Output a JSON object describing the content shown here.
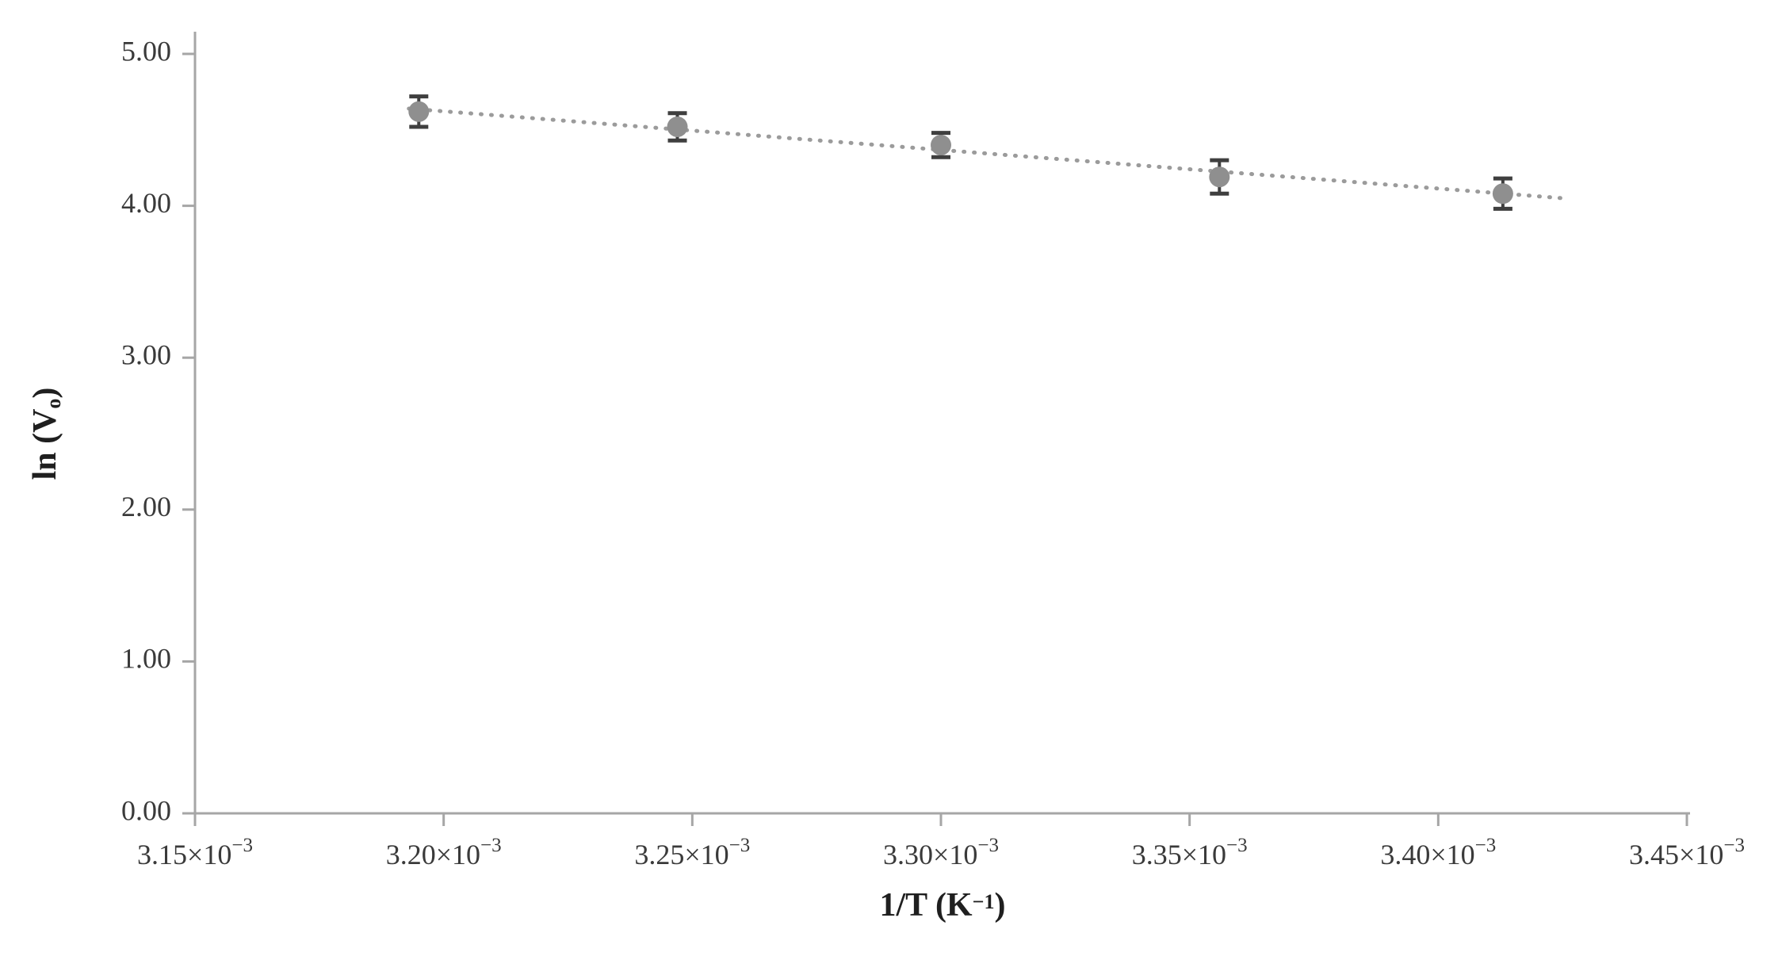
{
  "chart_data": {
    "type": "scatter",
    "title": "",
    "xlabel": "1/T (K⁻¹)",
    "ylabel": "ln (Vₒ)",
    "xlabel_parts": {
      "pre": "1/T (K",
      "sup": "−1",
      "post": ")"
    },
    "ylabel_parts": {
      "pre": "ln (V",
      "sub": "o",
      "post": ")"
    },
    "xlim": [
      0.00315,
      0.00345
    ],
    "ylim": [
      0.0,
      5.0
    ],
    "grid": false,
    "legend": "none",
    "points": [
      {
        "x": 0.003195,
        "y": 4.62,
        "yerr": 0.1
      },
      {
        "x": 0.003247,
        "y": 4.52,
        "yerr": 0.09
      },
      {
        "x": 0.0033,
        "y": 4.4,
        "yerr": 0.08
      },
      {
        "x": 0.003356,
        "y": 4.19,
        "yerr": 0.11
      },
      {
        "x": 0.003413,
        "y": 4.08,
        "yerr": 0.1
      }
    ],
    "trendline": {
      "style": "dotted",
      "x1": 0.003193,
      "y1": 4.64,
      "x2": 0.003425,
      "y2": 4.05
    },
    "xticks": [
      {
        "v": 0.00315,
        "base": "3.15×10",
        "sup": "−3"
      },
      {
        "v": 0.0032,
        "base": "3.20×10",
        "sup": "−3"
      },
      {
        "v": 0.00325,
        "base": "3.25×10",
        "sup": "−3"
      },
      {
        "v": 0.0033,
        "base": "3.30×10",
        "sup": "−3"
      },
      {
        "v": 0.00335,
        "base": "3.35×10",
        "sup": "−3"
      },
      {
        "v": 0.0034,
        "base": "3.40×10",
        "sup": "−3"
      },
      {
        "v": 0.00345,
        "base": "3.45×10",
        "sup": "−3"
      }
    ],
    "yticks": [
      {
        "v": 0.0,
        "label": "0.00"
      },
      {
        "v": 1.0,
        "label": "1.00"
      },
      {
        "v": 2.0,
        "label": "2.00"
      },
      {
        "v": 3.0,
        "label": "3.00"
      },
      {
        "v": 4.0,
        "label": "4.00"
      },
      {
        "v": 5.0,
        "label": "5.00"
      }
    ],
    "colors": {
      "point": "#8f8f8f",
      "error_bar": "#3f3f3f",
      "axis": "#a6a6a6",
      "tick_label": "#3a3a3a",
      "axis_title": "#1f1f1f",
      "trendline": "#9b9b9b"
    }
  }
}
